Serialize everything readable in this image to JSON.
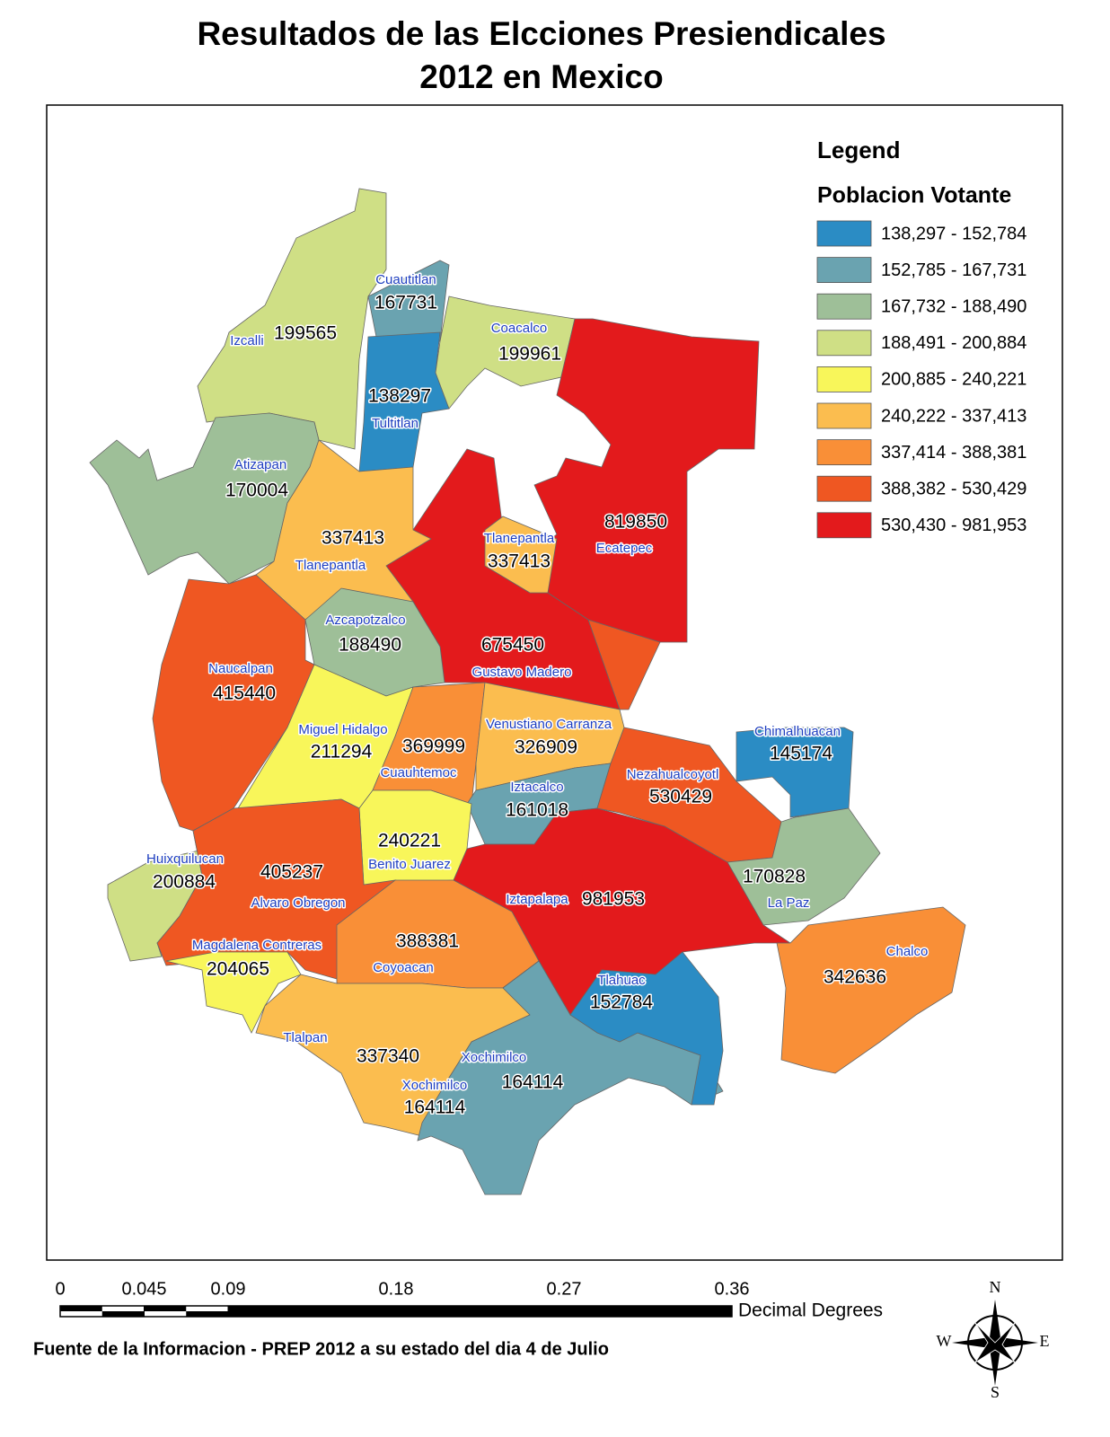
{
  "title": [
    "Resultados de las Elcciones Presiendicales",
    "2012 en Mexico"
  ],
  "legend": {
    "title": "Legend",
    "subtitle": "Poblacion Votante",
    "classes": [
      {
        "label": "138,297 - 152,784",
        "min": 138297,
        "max": 152784,
        "color": "#2b8cc4"
      },
      {
        "label": "152,785 - 167,731",
        "min": 152785,
        "max": 167731,
        "color": "#6aa3b0"
      },
      {
        "label": "167,732 - 188,490",
        "min": 167732,
        "max": 188490,
        "color": "#9ebf98"
      },
      {
        "label": "188,491 - 200,884",
        "min": 188491,
        "max": 200884,
        "color": "#cfdf85"
      },
      {
        "label": "200,885 - 240,221",
        "min": 200885,
        "max": 240221,
        "color": "#f8f65a"
      },
      {
        "label": "240,222 - 337,413",
        "min": 240222,
        "max": 337413,
        "color": "#fbbd4f"
      },
      {
        "label": "337,414 - 388,381",
        "min": 337414,
        "max": 388381,
        "color": "#f98f37"
      },
      {
        "label": "388,382 - 530,429",
        "min": 388382,
        "max": 530429,
        "color": "#ef5722"
      },
      {
        "label": "530,430 - 981,953",
        "min": 530430,
        "max": 981953,
        "color": "#e31a1c"
      }
    ]
  },
  "regions": [
    {
      "name": "Izcalli",
      "value": 199565
    },
    {
      "name": "Cuautitlan",
      "value": 167731
    },
    {
      "name": "Tultitlan",
      "value": 138297
    },
    {
      "name": "Coacalco",
      "value": 199961
    },
    {
      "name": "Ecatepec",
      "value": 819850
    },
    {
      "name": "Gustavo Madero",
      "value": 675450
    },
    {
      "name": "Tlanepantla",
      "value": 337413
    },
    {
      "name": "Atizapan",
      "value": 170004
    },
    {
      "name": "Tlanepantla",
      "value": 337413
    },
    {
      "name": "Azcapotzalco",
      "value": 188490
    },
    {
      "name": "Naucalpan",
      "value": 415440
    },
    {
      "name": "Miguel Hidalgo",
      "value": 211294
    },
    {
      "name": "Cuauhtemoc",
      "value": 369999
    },
    {
      "name": "Venustiano Carranza",
      "value": 326909
    },
    {
      "name": "Iztacalco",
      "value": 161018
    },
    {
      "name": "Nezahualcoyotl",
      "value": 530429
    },
    {
      "name": "Chimalhuacan",
      "value": 145174
    },
    {
      "name": "La Paz",
      "value": 170828
    },
    {
      "name": "Iztapalapa",
      "value": 981953
    },
    {
      "name": "Benito Juarez",
      "value": 240221
    },
    {
      "name": "Huixquilucan",
      "value": 200884
    },
    {
      "name": "Alvaro Obregon",
      "value": 405237
    },
    {
      "name": "Magdalena Contreras",
      "value": 204065
    },
    {
      "name": "Coyoacan",
      "value": 388381
    },
    {
      "name": "Tlalpan",
      "value": 337340
    },
    {
      "name": "Xochimilco",
      "value": 164114
    },
    {
      "name": "Tlahuac",
      "value": 152784
    },
    {
      "name": "Chalco",
      "value": 342636
    },
    {
      "name": "Xochimilco",
      "value": 164114
    }
  ],
  "scale_bar": {
    "ticks": [
      0,
      0.045,
      0.09,
      0.18,
      0.27,
      0.36
    ],
    "unit": "Decimal Degrees"
  },
  "source": "Fuente de la Informacion - PREP 2012 a su estado del dia 4 de Julio",
  "compass": {
    "n": "N",
    "e": "E",
    "s": "S",
    "w": "W"
  }
}
